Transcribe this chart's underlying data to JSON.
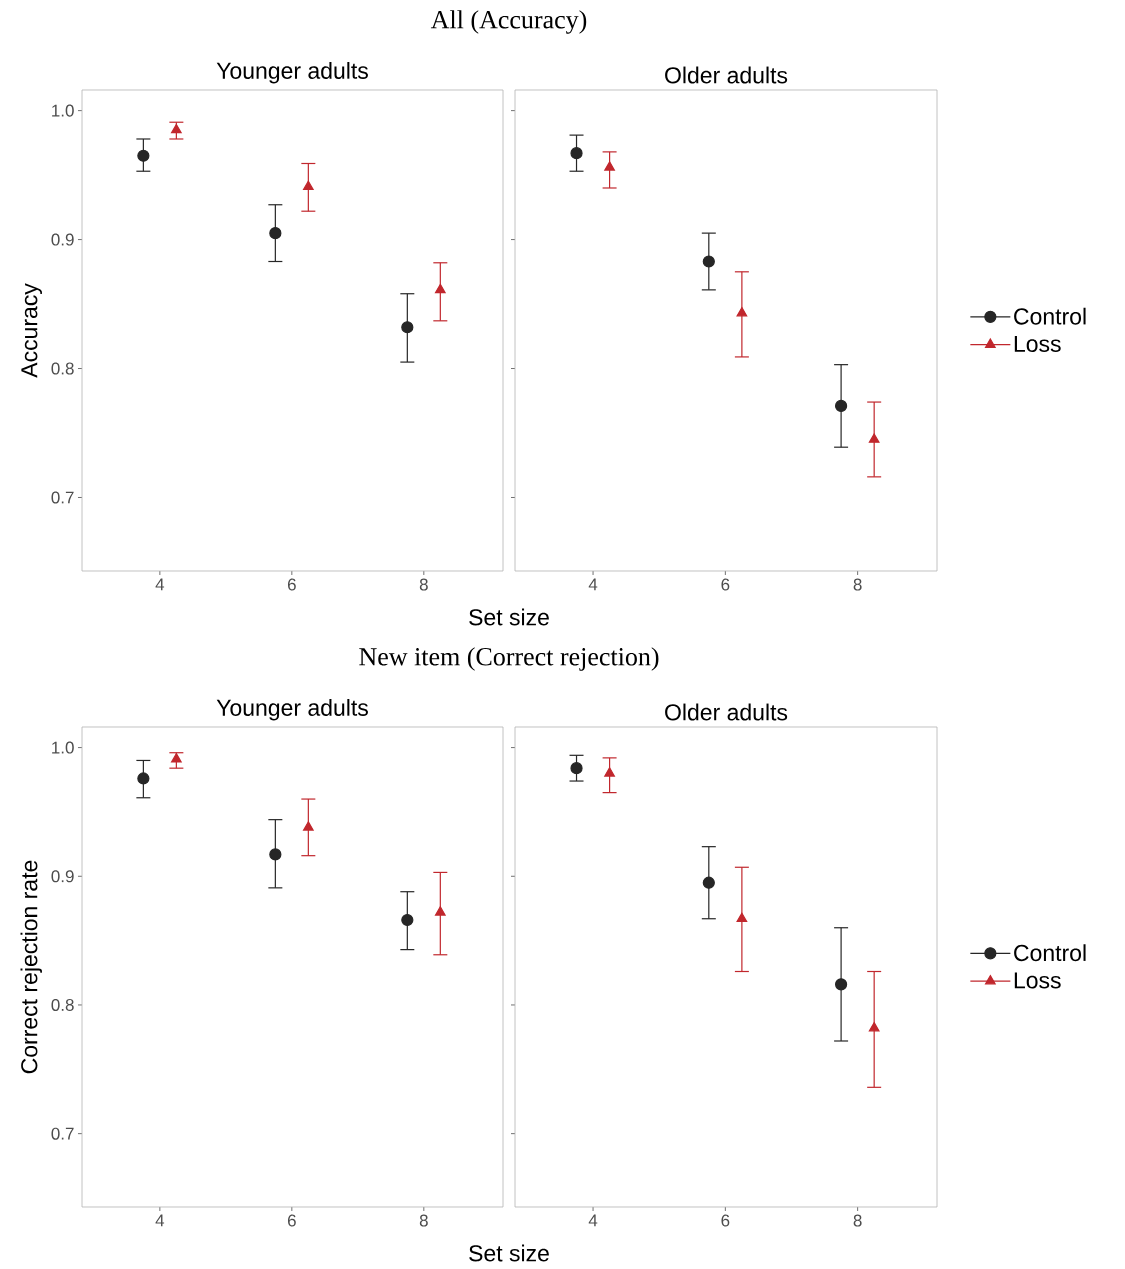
{
  "chart_data": [
    {
      "type": "scatter",
      "title": "All (Accuracy)",
      "subtitle": "Younger adults",
      "xlabel": "Set size",
      "ylabel": "Accuracy",
      "xlim": [
        2.82,
        9.2
      ],
      "ylim": [
        0.643,
        1.016
      ],
      "xticks": [
        4,
        6,
        8
      ],
      "yticks": [
        0.7,
        0.8,
        0.9,
        {
          "value": 1.0,
          "label": "1.0"
        }
      ],
      "series": [
        {
          "color": "#262626",
          "marker": "circle",
          "x": [
            3.75,
            5.75,
            7.75
          ],
          "values": [
            0.965,
            0.905,
            0.832
          ],
          "errors": [
            [
              0.953,
              0.978
            ],
            [
              0.883,
              0.927
            ],
            [
              0.805,
              0.858
            ]
          ]
        },
        {
          "color": "#c1272d",
          "marker": "triangle",
          "x": [
            4.25,
            6.25,
            8.25
          ],
          "values": [
            0.985,
            0.941,
            0.861
          ],
          "errors": [
            [
              0.978,
              0.991
            ],
            [
              0.922,
              0.959
            ],
            [
              0.837,
              0.882
            ]
          ]
        }
      ]
    },
    {
      "type": "scatter",
      "subtitle": "Older adults",
      "legend": "right",
      "tick_labels": "x",
      "xlim": [
        2.82,
        9.2
      ],
      "ylim": [
        0.643,
        1.016
      ],
      "xticks": [
        4,
        6,
        8
      ],
      "yticks": [
        0.7,
        0.8,
        0.9,
        1.0
      ],
      "series": [
        {
          "name": "Control",
          "color": "#262626",
          "marker": "circle",
          "x": [
            3.75,
            5.75,
            7.75
          ],
          "values": [
            0.967,
            0.883,
            0.771
          ],
          "errors": [
            [
              0.953,
              0.981
            ],
            [
              0.861,
              0.905
            ],
            [
              0.739,
              0.803
            ]
          ]
        },
        {
          "name": "Loss",
          "color": "#c1272d",
          "marker": "triangle",
          "x": [
            4.25,
            6.25,
            8.25
          ],
          "values": [
            0.956,
            0.843,
            0.745
          ],
          "errors": [
            [
              0.94,
              0.968
            ],
            [
              0.809,
              0.875
            ],
            [
              0.716,
              0.774
            ]
          ]
        }
      ]
    },
    {
      "type": "scatter",
      "title": "New item (Correct rejection)",
      "subtitle": "Younger adults",
      "xlabel": "Set size",
      "ylabel": "Correct rejection rate",
      "xlim": [
        2.82,
        9.2
      ],
      "ylim": [
        0.643,
        1.016
      ],
      "xticks": [
        4,
        6,
        8
      ],
      "yticks": [
        0.7,
        0.8,
        0.9,
        {
          "value": 1.0,
          "label": "1.0"
        }
      ],
      "series": [
        {
          "color": "#262626",
          "marker": "circle",
          "x": [
            3.75,
            5.75,
            7.75
          ],
          "values": [
            0.976,
            0.917,
            0.866
          ],
          "errors": [
            [
              0.961,
              0.99
            ],
            [
              0.891,
              0.944
            ],
            [
              0.843,
              0.888
            ]
          ]
        },
        {
          "color": "#c1272d",
          "marker": "triangle",
          "x": [
            4.25,
            6.25,
            8.25
          ],
          "values": [
            0.991,
            0.938,
            0.872
          ],
          "errors": [
            [
              0.984,
              0.996
            ],
            [
              0.916,
              0.96
            ],
            [
              0.839,
              0.903
            ]
          ]
        }
      ]
    },
    {
      "type": "scatter",
      "subtitle": "Older adults",
      "legend": "right",
      "tick_labels": "x",
      "xlim": [
        2.82,
        9.2
      ],
      "ylim": [
        0.643,
        1.016
      ],
      "xticks": [
        4,
        6,
        8
      ],
      "yticks": [
        0.7,
        0.8,
        0.9,
        1.0
      ],
      "series": [
        {
          "name": "Control",
          "color": "#262626",
          "marker": "circle",
          "x": [
            3.75,
            5.75,
            7.75
          ],
          "values": [
            0.984,
            0.895,
            0.816
          ],
          "errors": [
            [
              0.974,
              0.994
            ],
            [
              0.867,
              0.923
            ],
            [
              0.772,
              0.86
            ]
          ]
        },
        {
          "name": "Loss",
          "color": "#c1272d",
          "marker": "triangle",
          "x": [
            4.25,
            6.25,
            8.25
          ],
          "values": [
            0.98,
            0.867,
            0.782
          ],
          "errors": [
            [
              0.965,
              0.992
            ],
            [
              0.826,
              0.907
            ],
            [
              0.736,
              0.826
            ]
          ]
        }
      ]
    }
  ]
}
